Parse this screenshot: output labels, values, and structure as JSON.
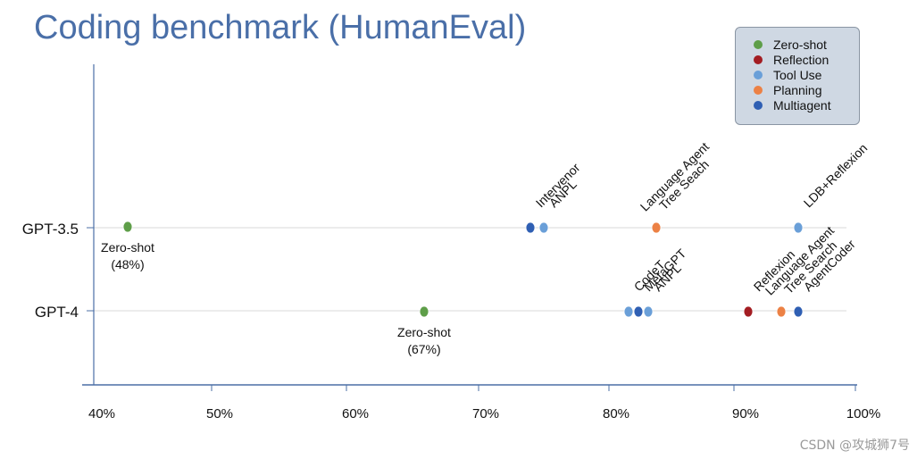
{
  "title": "Coding benchmark (HumanEval)",
  "watermark": "CSDN @攻城狮7号",
  "colors": {
    "zero_shot": "#5e9e49",
    "reflection": "#a31d22",
    "tool_use": "#6a9fd8",
    "planning": "#ec8145",
    "multiagent": "#2f5fb3",
    "axis": "#4b6fa6",
    "gridline": "#d9d9d9"
  },
  "legend": {
    "items": [
      {
        "label": "Zero-shot",
        "color_key": "zero_shot"
      },
      {
        "label": "Reflection",
        "color_key": "reflection"
      },
      {
        "label": "Tool Use",
        "color_key": "tool_use"
      },
      {
        "label": "Planning",
        "color_key": "planning"
      },
      {
        "label": "Multiagent",
        "color_key": "multiagent"
      }
    ]
  },
  "chart_data": {
    "type": "scatter",
    "title": "Coding benchmark (HumanEval)",
    "xlabel": "",
    "ylabel": "",
    "xlim": [
      40,
      100
    ],
    "x_ticks": [
      "40%",
      "50%",
      "60%",
      "70%",
      "80%",
      "90%",
      "100%"
    ],
    "categories": [
      "GPT-3.5",
      "GPT-4"
    ],
    "legend_position": "top-right",
    "grid": false,
    "series": [
      {
        "name": "Zero-shot",
        "color_key": "zero_shot",
        "points": [
          {
            "category": "GPT-3.5",
            "x": 48,
            "label": "Zero-shot\n(48%)"
          },
          {
            "category": "GPT-4",
            "x": 67,
            "label": "Zero-shot\n(67%)"
          }
        ]
      },
      {
        "name": "Reflection",
        "color_key": "reflection",
        "points": [
          {
            "category": "GPT-4",
            "x": 91,
            "label": "Reflexion"
          }
        ]
      },
      {
        "name": "Tool Use",
        "color_key": "tool_use",
        "points": [
          {
            "category": "GPT-3.5",
            "x": 75,
            "label": "ANPL"
          },
          {
            "category": "GPT-3.5",
            "x": 95,
            "label": "LDB+Reflexion"
          },
          {
            "category": "GPT-4",
            "x": 81.5,
            "label": "CodeT"
          },
          {
            "category": "GPT-4",
            "x": 83,
            "label": "ANPL"
          }
        ]
      },
      {
        "name": "Planning",
        "color_key": "planning",
        "points": [
          {
            "category": "GPT-3.5",
            "x": 83.5,
            "label": "Language Agent\nTree Seach"
          },
          {
            "category": "GPT-4",
            "x": 94,
            "label": "Language Agent\nTree Search"
          }
        ]
      },
      {
        "name": "Multiagent",
        "color_key": "multiagent",
        "points": [
          {
            "category": "GPT-3.5",
            "x": 74,
            "label": "Intervenor"
          },
          {
            "category": "GPT-4",
            "x": 82.2,
            "label": "MetaGPT"
          },
          {
            "category": "GPT-4",
            "x": 95,
            "label": "AgentCoder"
          }
        ]
      }
    ]
  }
}
